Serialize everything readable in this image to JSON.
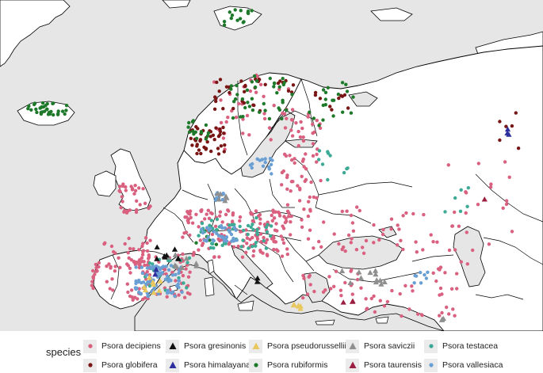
{
  "colors": {
    "sea": "#e6e6e6",
    "land": "#ffffff",
    "border": "#000000",
    "lake": "#e6e6e6"
  },
  "legend": {
    "title": "species",
    "items": [
      {
        "label": "Psora decipiens",
        "color": "#d9607f",
        "shape": "circle"
      },
      {
        "label": "Psora globifera",
        "color": "#7a1515",
        "shape": "circle"
      },
      {
        "label": "Psora gresinonis",
        "color": "#111111",
        "shape": "triangle"
      },
      {
        "label": "Psora himalayana",
        "color": "#2e2f9e",
        "shape": "triangle"
      },
      {
        "label": "Psora pseudorussellii",
        "color": "#e8c85e",
        "shape": "triangle"
      },
      {
        "label": "Psora rubiformis",
        "color": "#1e7a2a",
        "shape": "circle"
      },
      {
        "label": "Psora saviczii",
        "color": "#8f8f8f",
        "shape": "triangle"
      },
      {
        "label": "Psora taurensis",
        "color": "#9b1d3f",
        "shape": "triangle"
      },
      {
        "label": "Psora testacea",
        "color": "#3daa95",
        "shape": "circle"
      },
      {
        "label": "Psora vallesiaca",
        "color": "#6a9fd4",
        "shape": "circle"
      }
    ]
  }
}
